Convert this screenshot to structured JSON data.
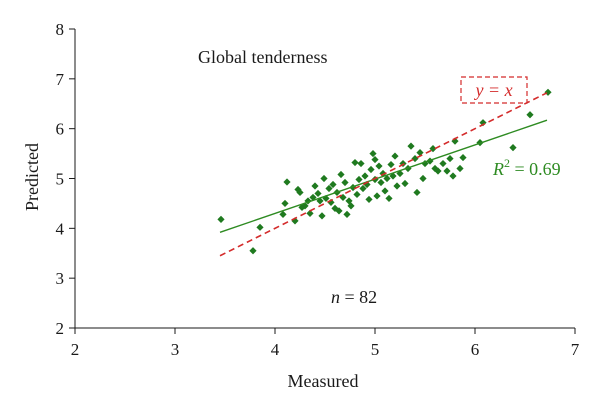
{
  "chart_data": {
    "type": "scatter",
    "title": "Global tenderness",
    "xlabel": "Measured",
    "ylabel": "Predicted",
    "xlim": [
      2,
      7
    ],
    "ylim": [
      2,
      8
    ],
    "x_ticks": [
      "2",
      "3",
      "4",
      "5",
      "6",
      "7"
    ],
    "y_ticks": [
      "2",
      "3",
      "4",
      "5",
      "6",
      "7",
      "8"
    ],
    "grid": false,
    "colors": {
      "points": "#1f7a1f",
      "fit_line": "#2e8b22",
      "identity_line": "#d42b2b",
      "axis": "#1a1a1a"
    },
    "annotations": {
      "identity_label": "y = x",
      "r2_prefix": "R",
      "r2_superscript": "2",
      "r2_value": " = 0.69",
      "n_prefix": "n",
      "n_value": " = 82"
    },
    "fit_line": {
      "x": [
        3.45,
        6.72
      ],
      "y": [
        3.92,
        6.17
      ]
    },
    "identity_line": {
      "x": [
        3.45,
        6.72
      ],
      "y": [
        3.45,
        6.72
      ]
    },
    "points": [
      {
        "x": 3.46,
        "y": 4.18
      },
      {
        "x": 3.78,
        "y": 3.55
      },
      {
        "x": 3.85,
        "y": 4.02
      },
      {
        "x": 4.08,
        "y": 4.28
      },
      {
        "x": 4.1,
        "y": 4.5
      },
      {
        "x": 4.12,
        "y": 4.93
      },
      {
        "x": 4.2,
        "y": 4.15
      },
      {
        "x": 4.23,
        "y": 4.78
      },
      {
        "x": 4.25,
        "y": 4.72
      },
      {
        "x": 4.27,
        "y": 4.42
      },
      {
        "x": 4.3,
        "y": 4.45
      },
      {
        "x": 4.33,
        "y": 4.55
      },
      {
        "x": 4.35,
        "y": 4.3
      },
      {
        "x": 4.38,
        "y": 4.62
      },
      {
        "x": 4.4,
        "y": 4.85
      },
      {
        "x": 4.43,
        "y": 4.7
      },
      {
        "x": 4.45,
        "y": 4.55
      },
      {
        "x": 4.47,
        "y": 4.25
      },
      {
        "x": 4.49,
        "y": 5.0
      },
      {
        "x": 4.51,
        "y": 4.6
      },
      {
        "x": 4.54,
        "y": 4.8
      },
      {
        "x": 4.56,
        "y": 4.52
      },
      {
        "x": 4.58,
        "y": 4.88
      },
      {
        "x": 4.6,
        "y": 4.4
      },
      {
        "x": 4.62,
        "y": 4.72
      },
      {
        "x": 4.64,
        "y": 4.35
      },
      {
        "x": 4.66,
        "y": 5.08
      },
      {
        "x": 4.68,
        "y": 4.62
      },
      {
        "x": 4.7,
        "y": 4.92
      },
      {
        "x": 4.72,
        "y": 4.28
      },
      {
        "x": 4.74,
        "y": 4.55
      },
      {
        "x": 4.76,
        "y": 4.45
      },
      {
        "x": 4.78,
        "y": 4.82
      },
      {
        "x": 4.8,
        "y": 5.32
      },
      {
        "x": 4.82,
        "y": 4.68
      },
      {
        "x": 4.84,
        "y": 4.98
      },
      {
        "x": 4.86,
        "y": 5.3
      },
      {
        "x": 4.88,
        "y": 4.8
      },
      {
        "x": 4.9,
        "y": 5.05
      },
      {
        "x": 4.92,
        "y": 4.88
      },
      {
        "x": 4.94,
        "y": 4.58
      },
      {
        "x": 4.96,
        "y": 5.18
      },
      {
        "x": 4.98,
        "y": 5.5
      },
      {
        "x": 5.0,
        "y": 5.38
      },
      {
        "x": 5.0,
        "y": 4.98
      },
      {
        "x": 5.02,
        "y": 4.65
      },
      {
        "x": 5.04,
        "y": 5.25
      },
      {
        "x": 5.06,
        "y": 4.92
      },
      {
        "x": 5.08,
        "y": 5.1
      },
      {
        "x": 5.1,
        "y": 4.75
      },
      {
        "x": 5.12,
        "y": 5.0
      },
      {
        "x": 5.14,
        "y": 4.6
      },
      {
        "x": 5.16,
        "y": 5.28
      },
      {
        "x": 5.18,
        "y": 5.05
      },
      {
        "x": 5.2,
        "y": 5.45
      },
      {
        "x": 5.22,
        "y": 4.85
      },
      {
        "x": 5.25,
        "y": 5.1
      },
      {
        "x": 5.28,
        "y": 5.3
      },
      {
        "x": 5.3,
        "y": 4.9
      },
      {
        "x": 5.33,
        "y": 5.2
      },
      {
        "x": 5.36,
        "y": 5.65
      },
      {
        "x": 5.4,
        "y": 5.4
      },
      {
        "x": 5.42,
        "y": 4.72
      },
      {
        "x": 5.45,
        "y": 5.52
      },
      {
        "x": 5.48,
        "y": 5.0
      },
      {
        "x": 5.5,
        "y": 5.3
      },
      {
        "x": 5.55,
        "y": 5.35
      },
      {
        "x": 5.58,
        "y": 5.6
      },
      {
        "x": 5.6,
        "y": 5.2
      },
      {
        "x": 5.63,
        "y": 5.15
      },
      {
        "x": 5.68,
        "y": 5.3
      },
      {
        "x": 5.72,
        "y": 5.15
      },
      {
        "x": 5.75,
        "y": 5.4
      },
      {
        "x": 5.78,
        "y": 5.05
      },
      {
        "x": 5.8,
        "y": 5.75
      },
      {
        "x": 5.85,
        "y": 5.2
      },
      {
        "x": 5.88,
        "y": 5.42
      },
      {
        "x": 6.05,
        "y": 5.72
      },
      {
        "x": 6.08,
        "y": 6.12
      },
      {
        "x": 6.38,
        "y": 5.62
      },
      {
        "x": 6.55,
        "y": 6.28
      },
      {
        "x": 6.73,
        "y": 6.73
      }
    ]
  }
}
